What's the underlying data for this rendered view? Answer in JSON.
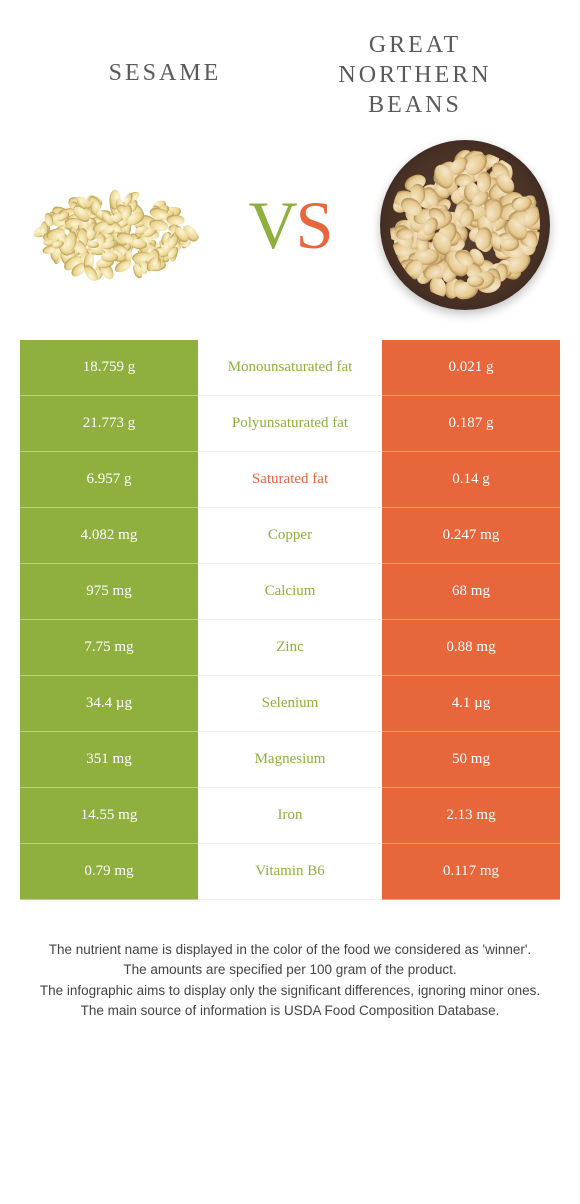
{
  "header": {
    "left_title": "SESAME",
    "right_title": "GREAT NORTHERN BEANS",
    "vs_v": "V",
    "vs_s": "S"
  },
  "colors": {
    "left": "#8fb03e",
    "right": "#e8663c",
    "mid_bg": "#ffffff",
    "row_border": "rgba(255,255,255,0.4)",
    "title_text": "#5a5a5a"
  },
  "table": {
    "rows": [
      {
        "left": "18.759 g",
        "label": "Monounsaturated fat",
        "right": "0.021 g",
        "winner": "left"
      },
      {
        "left": "21.773 g",
        "label": "Polyunsaturated fat",
        "right": "0.187 g",
        "winner": "left"
      },
      {
        "left": "6.957 g",
        "label": "Saturated fat",
        "right": "0.14 g",
        "winner": "right"
      },
      {
        "left": "4.082 mg",
        "label": "Copper",
        "right": "0.247 mg",
        "winner": "left"
      },
      {
        "left": "975 mg",
        "label": "Calcium",
        "right": "68 mg",
        "winner": "left"
      },
      {
        "left": "7.75 mg",
        "label": "Zinc",
        "right": "0.88 mg",
        "winner": "left"
      },
      {
        "left": "34.4 µg",
        "label": "Selenium",
        "right": "4.1 µg",
        "winner": "left"
      },
      {
        "left": "351 mg",
        "label": "Magnesium",
        "right": "50 mg",
        "winner": "left"
      },
      {
        "left": "14.55 mg",
        "label": "Iron",
        "right": "2.13 mg",
        "winner": "left"
      },
      {
        "left": "0.79 mg",
        "label": "Vitamin B6",
        "right": "0.117 mg",
        "winner": "left"
      }
    ]
  },
  "footer": {
    "line1": "The nutrient name is displayed in the color of the food we considered as 'winner'.",
    "line2": "The amounts are specified per 100 gram of the product.",
    "line3": "The infographic aims to display only the significant differences, ignoring minor ones.",
    "line4": "The main source of information is USDA Food Composition Database."
  }
}
